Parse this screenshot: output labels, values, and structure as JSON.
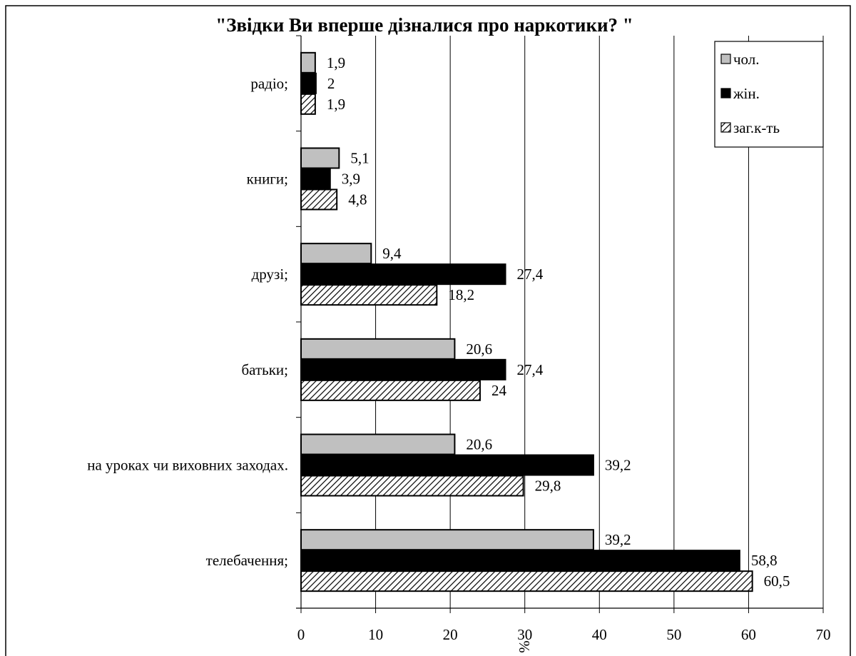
{
  "chart_data": {
    "type": "bar",
    "orientation": "horizontal",
    "title": "\"Звідки Ви вперше дізналися про наркотики? \"",
    "xlabel": "%",
    "ylabel": "",
    "xlim": [
      0,
      70
    ],
    "x_ticks": [
      0,
      10,
      20,
      30,
      40,
      50,
      60,
      70
    ],
    "grid": "vertical",
    "legend_position": "top-right",
    "categories": [
      "радіо;",
      "книги;",
      "друзі;",
      "батьки;",
      "на уроках чи виховних заходах.",
      "телебачення;"
    ],
    "series": [
      {
        "name": "чол.",
        "pattern": "solid-gray",
        "color": "#c0c0c0",
        "values": [
          1.9,
          5.1,
          9.4,
          20.6,
          20.6,
          39.2
        ],
        "labels": [
          "1,9",
          "5,1",
          "9,4",
          "20,6",
          "20,6",
          "39,2"
        ]
      },
      {
        "name": "жін.",
        "pattern": "solid-black",
        "color": "#000000",
        "values": [
          2,
          3.9,
          27.4,
          27.4,
          39.2,
          58.8
        ],
        "labels": [
          "2",
          "3,9",
          "27,4",
          "27,4",
          "39,2",
          "58,8"
        ]
      },
      {
        "name": "заг.к-ть",
        "pattern": "diagonal-hatch",
        "color": "#ffffff",
        "values": [
          1.9,
          4.8,
          18.2,
          24,
          29.8,
          60.5
        ],
        "labels": [
          "1,9",
          "4,8",
          "18,2",
          "24",
          "29,8",
          "60,5"
        ]
      }
    ]
  }
}
